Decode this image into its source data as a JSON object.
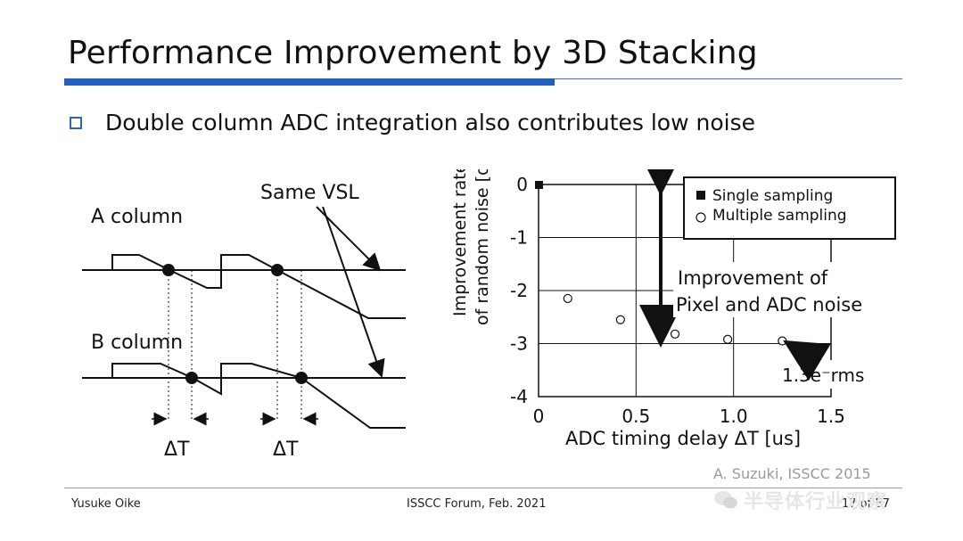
{
  "title": "Performance Improvement by 3D Stacking",
  "bullet": "Double column ADC integration also contributes low noise",
  "timing_diagram": {
    "a_column": "A column",
    "b_column": "B column",
    "same_vsl": "Same VSL",
    "delta_t": "ΔT"
  },
  "chart_data": {
    "type": "scatter",
    "xlabel": "ADC timing delay ΔT [us]",
    "ylabel_line1": "Improvement rate",
    "ylabel_line2": "of random noise [dB]",
    "xlim": [
      0,
      1.5
    ],
    "ylim": [
      -4,
      0
    ],
    "x_ticks": [
      "0",
      "0.5",
      "1.0",
      "1.5"
    ],
    "y_ticks": [
      "0",
      "-1",
      "-2",
      "-3",
      "-4"
    ],
    "grid": true,
    "legend_position": "top-right",
    "series": [
      {
        "name": "Single sampling",
        "marker": "filled-square",
        "points": [
          [
            0,
            0
          ]
        ]
      },
      {
        "name": "Multiple sampling",
        "marker": "open-circle",
        "points": [
          [
            0.15,
            -2.15
          ],
          [
            0.42,
            -2.55
          ],
          [
            0.7,
            -2.82
          ],
          [
            0.97,
            -2.92
          ],
          [
            1.25,
            -2.95
          ]
        ]
      }
    ],
    "annotation_arrow_label_1": "Improvement of",
    "annotation_arrow_label_2": "Pixel and ADC noise",
    "annotation_point_label": "1.3e⁻rms"
  },
  "citation": "A. Suzuki, ISSCC 2015",
  "footer": {
    "presenter": "Yusuke Oike",
    "event": "ISSCC Forum, Feb. 2021",
    "page": "17 of 57"
  },
  "watermark": "半导体行业观察",
  "colors": {
    "accent_blue": "#1f5fbf",
    "bullet_blue": "#2a66c4"
  }
}
